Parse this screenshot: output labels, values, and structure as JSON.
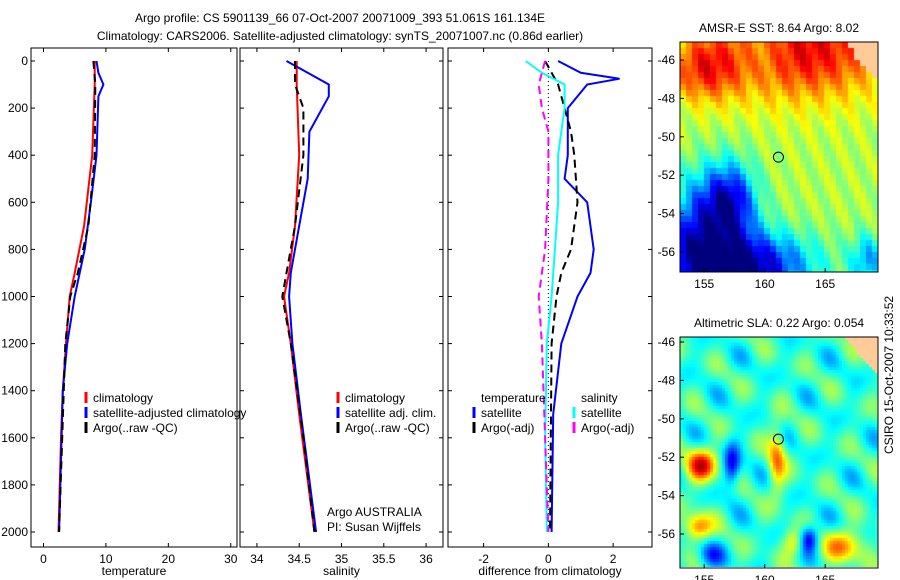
{
  "title": {
    "line1": "Argo profile: CS 5901139_66 07-Oct-2007 20071009_393 51.061S 161.134E",
    "line2": "Climatology: CARS2006. Satellite-adjusted climatology: synTS_20071007.nc (0.86d earlier)"
  },
  "side_label": "CSIRO 15-Oct-2007 10:33:52",
  "colors": {
    "red": "#ff0000",
    "blue": "#0000ff",
    "black": "#000000",
    "cyan": "#00ffff",
    "magenta": "#ff00ff"
  },
  "chart_data": [
    {
      "type": "line",
      "xlabel": "temperature",
      "ylabel": "",
      "xlim": [
        -2,
        31
      ],
      "ylim": [
        2000,
        0
      ],
      "xticks": [
        "0",
        "10",
        "20",
        "30"
      ],
      "xtickvals": [
        0,
        10,
        20,
        30
      ],
      "yticks": [
        "0",
        "200",
        "400",
        "600",
        "800",
        "1000",
        "1200",
        "1400",
        "1600",
        "1800",
        "2000"
      ],
      "legend": [
        "climatology",
        "satellite-adjusted climatology",
        "Argo(..raw -QC)"
      ],
      "series": [
        {
          "name": "climatology",
          "color": "red",
          "dash": false,
          "depth": [
            0,
            100,
            400,
            700,
            900,
            1000,
            1200,
            1400,
            1600,
            2000
          ],
          "values": [
            8.2,
            8.2,
            7.8,
            6.5,
            5.0,
            4.2,
            3.6,
            3.1,
            2.8,
            2.4
          ]
        },
        {
          "name": "satellite-adjusted climatology",
          "color": "blue",
          "dash": false,
          "depth": [
            0,
            50,
            100,
            150,
            400,
            600,
            800,
            1000,
            1200,
            1400,
            2000
          ],
          "values": [
            8.5,
            8.8,
            9.6,
            8.8,
            8.5,
            7.6,
            6.6,
            5.0,
            3.8,
            3.1,
            2.5
          ]
        },
        {
          "name": "Argo(..raw -QC)",
          "color": "black",
          "dash": true,
          "depth": [
            0,
            100,
            400,
            700,
            900,
            1000,
            1200,
            2000
          ],
          "values": [
            8.0,
            8.3,
            8.2,
            7.2,
            5.5,
            4.3,
            3.5,
            2.5
          ]
        }
      ]
    },
    {
      "type": "line",
      "xlabel": "salinity",
      "xlim": [
        33.8,
        36.2
      ],
      "ylim": [
        2000,
        0
      ],
      "xticks": [
        "34",
        "34.5",
        "35",
        "35.5",
        "36"
      ],
      "xtickvals": [
        34,
        34.5,
        35,
        35.5,
        36
      ],
      "legend": [
        "climatology",
        "satellite adj. clim.",
        "Argo(..raw -QC)"
      ],
      "annotation": [
        "Argo AUSTRALIA",
        "PI: Susan Wijffels"
      ],
      "series": [
        {
          "name": "climatology",
          "color": "red",
          "dash": false,
          "depth": [
            0,
            100,
            400,
            700,
            900,
            1000,
            1200,
            1500,
            2000
          ],
          "values": [
            34.47,
            34.47,
            34.5,
            34.45,
            34.38,
            34.32,
            34.4,
            34.5,
            34.68
          ]
        },
        {
          "name": "satellite adj. clim.",
          "color": "blue",
          "dash": false,
          "depth": [
            0,
            50,
            100,
            150,
            300,
            500,
            700,
            900,
            1000,
            1200,
            1500,
            2000
          ],
          "values": [
            34.35,
            34.6,
            34.85,
            34.85,
            34.62,
            34.6,
            34.5,
            34.4,
            34.38,
            34.42,
            34.52,
            34.7
          ]
        },
        {
          "name": "Argo(..raw -QC)",
          "color": "black",
          "dash": true,
          "depth": [
            0,
            100,
            200,
            400,
            700,
            900,
            1000,
            1200,
            1600,
            2000
          ],
          "values": [
            34.45,
            34.45,
            34.55,
            34.55,
            34.45,
            34.35,
            34.3,
            34.4,
            34.55,
            34.68
          ]
        }
      ]
    },
    {
      "type": "line",
      "xlabel": "difference from climatology",
      "xlim": [
        -3.1,
        3.2
      ],
      "ylim": [
        2000,
        0
      ],
      "xticks": [
        "-2",
        "0",
        "2"
      ],
      "xtickvals": [
        -2,
        0,
        2
      ],
      "legend_headers": [
        "temperature",
        "salinity"
      ],
      "legend": [
        "satellite",
        "Argo(-adj)",
        "satellite",
        "Argo(-adj)"
      ],
      "series": [
        {
          "name": "temperature satellite",
          "color": "blue",
          "dash": false,
          "depth": [
            0,
            50,
            75,
            100,
            200,
            400,
            500,
            600,
            800,
            900,
            1000,
            1200,
            1500,
            2000
          ],
          "values": [
            0.3,
            1.0,
            2.2,
            1.2,
            0.6,
            0.6,
            0.5,
            1.2,
            1.4,
            1.3,
            0.9,
            0.4,
            0.15,
            0.1
          ]
        },
        {
          "name": "temperature Argo(-adj)",
          "color": "black",
          "dash": true,
          "depth": [
            0,
            100,
            300,
            400,
            600,
            800,
            900,
            1000,
            1200,
            2000
          ],
          "values": [
            -0.1,
            0.3,
            0.7,
            0.8,
            0.9,
            0.7,
            0.4,
            0.25,
            0.1,
            0.05
          ]
        },
        {
          "name": "salinity satellite",
          "color": "cyan",
          "dash": false,
          "depth": [
            0,
            50,
            100,
            200,
            300,
            400,
            600,
            800,
            1000,
            1200,
            1600,
            2000
          ],
          "values": [
            -0.7,
            -0.2,
            0.5,
            0.5,
            0.4,
            0.3,
            0.3,
            0.2,
            0.1,
            -0.05,
            -0.1,
            -0.05
          ]
        },
        {
          "name": "salinity Argo(-adj)",
          "color": "magenta",
          "dash": true,
          "depth": [
            0,
            100,
            200,
            300,
            500,
            800,
            1000,
            1200,
            1600,
            2000
          ],
          "values": [
            -0.1,
            -0.3,
            -0.2,
            0,
            0,
            -0.1,
            -0.3,
            -0.2,
            -0.1,
            0
          ]
        }
      ]
    },
    {
      "type": "heatmap",
      "title": "AMSR-E SST: 8.64 Argo: 8.02",
      "xticks": [
        "155",
        "160",
        "165"
      ],
      "yticks": [
        "-46",
        "-48",
        "-50",
        "-52",
        "-54",
        "-56"
      ],
      "marker": [
        161.134,
        -51.061
      ]
    },
    {
      "type": "heatmap",
      "title": "Altimetric SLA: 0.22 Argo: 0.054",
      "xticks": [
        "155",
        "160",
        "165"
      ],
      "yticks": [
        "-46",
        "-48",
        "-50",
        "-52",
        "-54",
        "-56"
      ],
      "marker": [
        161.134,
        -51.061
      ]
    }
  ]
}
